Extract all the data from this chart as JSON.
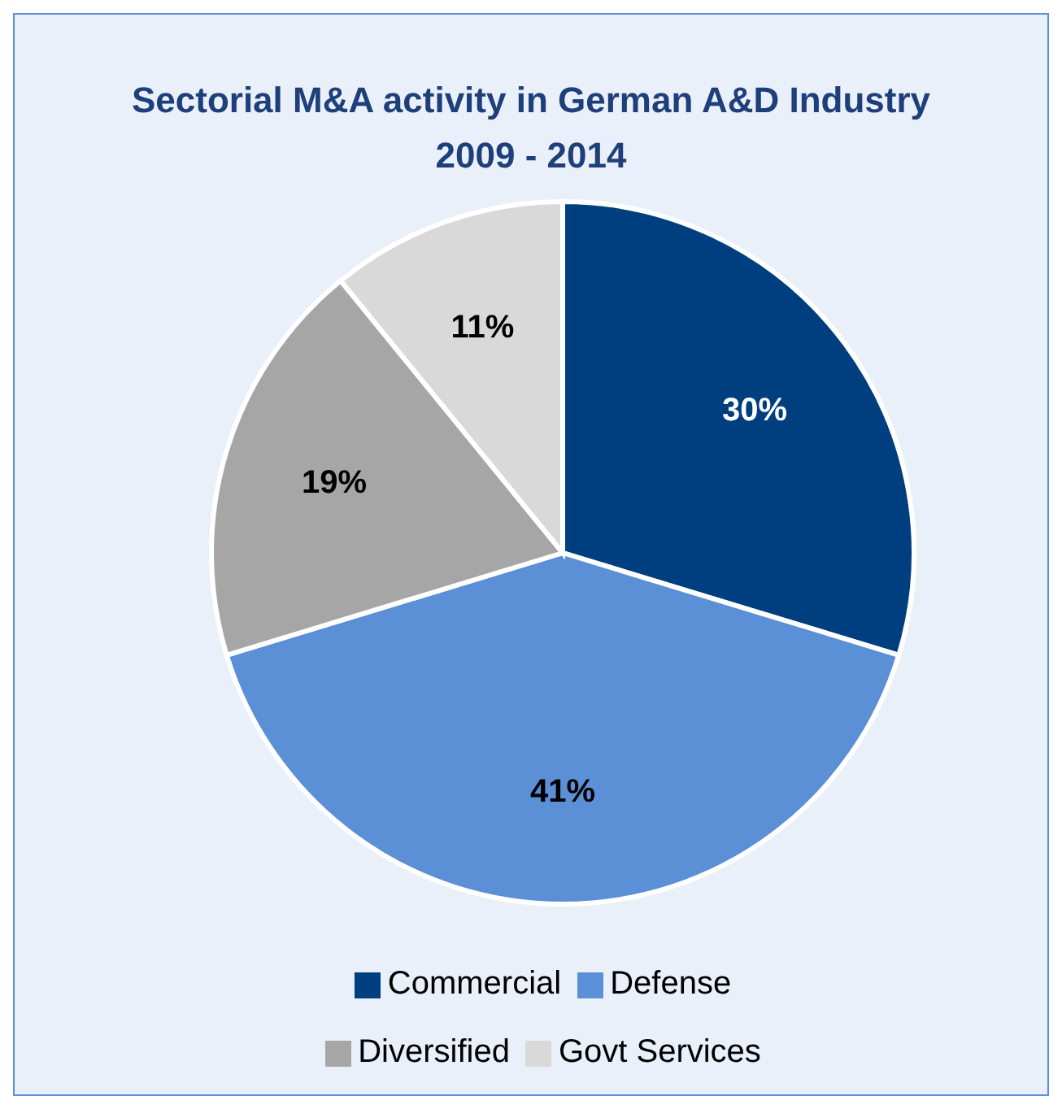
{
  "chart_data": {
    "type": "pie",
    "title": "Sectorial M&A activity in German A&D  Industry\n2009 - 2014",
    "categories": [
      "Commercial",
      "Defense",
      "Diversified",
      "Govt Services"
    ],
    "values": [
      30,
      41,
      19,
      11
    ],
    "colors": [
      "#003f7f",
      "#5b8fd6",
      "#a6a6a6",
      "#d9d9d9"
    ],
    "value_labels": [
      "30%",
      "41%",
      "19%",
      "11%"
    ],
    "legend": "bottom"
  }
}
